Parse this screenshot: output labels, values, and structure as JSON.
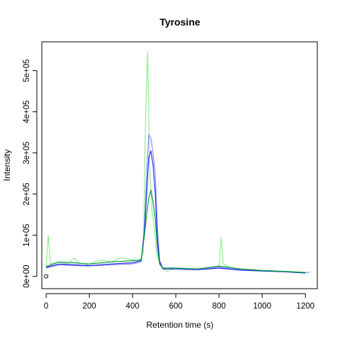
{
  "colors": {
    "background": "#ffffff",
    "axis": "#000000",
    "green_light": "#90ee90",
    "green_dark": "#00a03c",
    "blue": "#2a2af0",
    "blue_light": "#8c8cff"
  },
  "chart_data": {
    "type": "line",
    "title": "Tyrosine",
    "xlabel": "Retention time (s)",
    "ylabel": "Intensity",
    "xlim": [
      -20,
      1255
    ],
    "ylim": [
      -30000,
      570000
    ],
    "x_ticks": [
      0,
      200,
      400,
      600,
      800,
      1000,
      1200
    ],
    "x_tick_labels": [
      "0",
      "200",
      "400",
      "600",
      "800",
      "1000",
      "1200"
    ],
    "y_ticks": [
      0,
      100000,
      200000,
      300000,
      400000,
      500000
    ],
    "y_tick_labels": [
      "0e+00",
      "1e+05",
      "2e+05",
      "3e+05",
      "4e+05",
      "5e+05"
    ],
    "grid": false,
    "legend": "none",
    "marker": {
      "x": 0,
      "y": 0,
      "shape": "open-circle"
    },
    "series": [
      {
        "color": "#90ee90",
        "values": [
          [
            0,
            25000
          ],
          [
            10,
            100000
          ],
          [
            20,
            30000
          ],
          [
            60,
            35000
          ],
          [
            100,
            30000
          ],
          [
            130,
            45000
          ],
          [
            160,
            25000
          ],
          [
            200,
            30000
          ],
          [
            250,
            40000
          ],
          [
            300,
            35000
          ],
          [
            350,
            45000
          ],
          [
            400,
            40000
          ],
          [
            430,
            38000
          ],
          [
            450,
            55000
          ],
          [
            460,
            380000
          ],
          [
            470,
            545000
          ],
          [
            480,
            260000
          ],
          [
            490,
            160000
          ],
          [
            500,
            120000
          ],
          [
            510,
            60000
          ],
          [
            520,
            40000
          ],
          [
            540,
            20000
          ],
          [
            560,
            12000
          ],
          [
            600,
            20000
          ],
          [
            700,
            18000
          ],
          [
            780,
            20000
          ],
          [
            800,
            22000
          ],
          [
            810,
            95000
          ],
          [
            820,
            30000
          ],
          [
            850,
            22000
          ],
          [
            900,
            18000
          ],
          [
            1000,
            15000
          ],
          [
            1100,
            12000
          ],
          [
            1200,
            10000
          ]
        ]
      },
      {
        "color": "#8c8cff",
        "values": [
          [
            0,
            20000
          ],
          [
            60,
            28000
          ],
          [
            130,
            26000
          ],
          [
            200,
            25000
          ],
          [
            300,
            28000
          ],
          [
            400,
            30000
          ],
          [
            440,
            35000
          ],
          [
            455,
            120000
          ],
          [
            465,
            250000
          ],
          [
            475,
            345000
          ],
          [
            485,
            335000
          ],
          [
            495,
            300000
          ],
          [
            505,
            250000
          ],
          [
            515,
            120000
          ],
          [
            525,
            40000
          ],
          [
            540,
            20000
          ],
          [
            600,
            20000
          ],
          [
            700,
            17000
          ],
          [
            800,
            22000
          ],
          [
            900,
            16000
          ],
          [
            1000,
            14000
          ],
          [
            1100,
            12000
          ],
          [
            1200,
            9000
          ],
          [
            1220,
            10000
          ]
        ]
      },
      {
        "color": "#2a2af0",
        "values": [
          [
            0,
            22000
          ],
          [
            60,
            30000
          ],
          [
            130,
            28000
          ],
          [
            200,
            26000
          ],
          [
            300,
            30000
          ],
          [
            400,
            33000
          ],
          [
            440,
            38000
          ],
          [
            455,
            110000
          ],
          [
            465,
            200000
          ],
          [
            475,
            290000
          ],
          [
            485,
            305000
          ],
          [
            495,
            270000
          ],
          [
            505,
            200000
          ],
          [
            515,
            90000
          ],
          [
            525,
            35000
          ],
          [
            540,
            18000
          ],
          [
            600,
            18000
          ],
          [
            700,
            16000
          ],
          [
            800,
            20000
          ],
          [
            900,
            15000
          ],
          [
            1000,
            13000
          ],
          [
            1100,
            11000
          ],
          [
            1200,
            8000
          ]
        ]
      },
      {
        "color": "#00a03c",
        "values": [
          [
            0,
            24000
          ],
          [
            60,
            35000
          ],
          [
            130,
            33000
          ],
          [
            200,
            30000
          ],
          [
            300,
            35000
          ],
          [
            400,
            38000
          ],
          [
            440,
            40000
          ],
          [
            455,
            100000
          ],
          [
            465,
            150000
          ],
          [
            475,
            190000
          ],
          [
            485,
            210000
          ],
          [
            495,
            180000
          ],
          [
            505,
            140000
          ],
          [
            515,
            70000
          ],
          [
            525,
            30000
          ],
          [
            540,
            20000
          ],
          [
            600,
            20000
          ],
          [
            700,
            18000
          ],
          [
            800,
            25000
          ],
          [
            900,
            18000
          ],
          [
            1000,
            14000
          ],
          [
            1100,
            12000
          ],
          [
            1200,
            9000
          ]
        ]
      }
    ]
  }
}
